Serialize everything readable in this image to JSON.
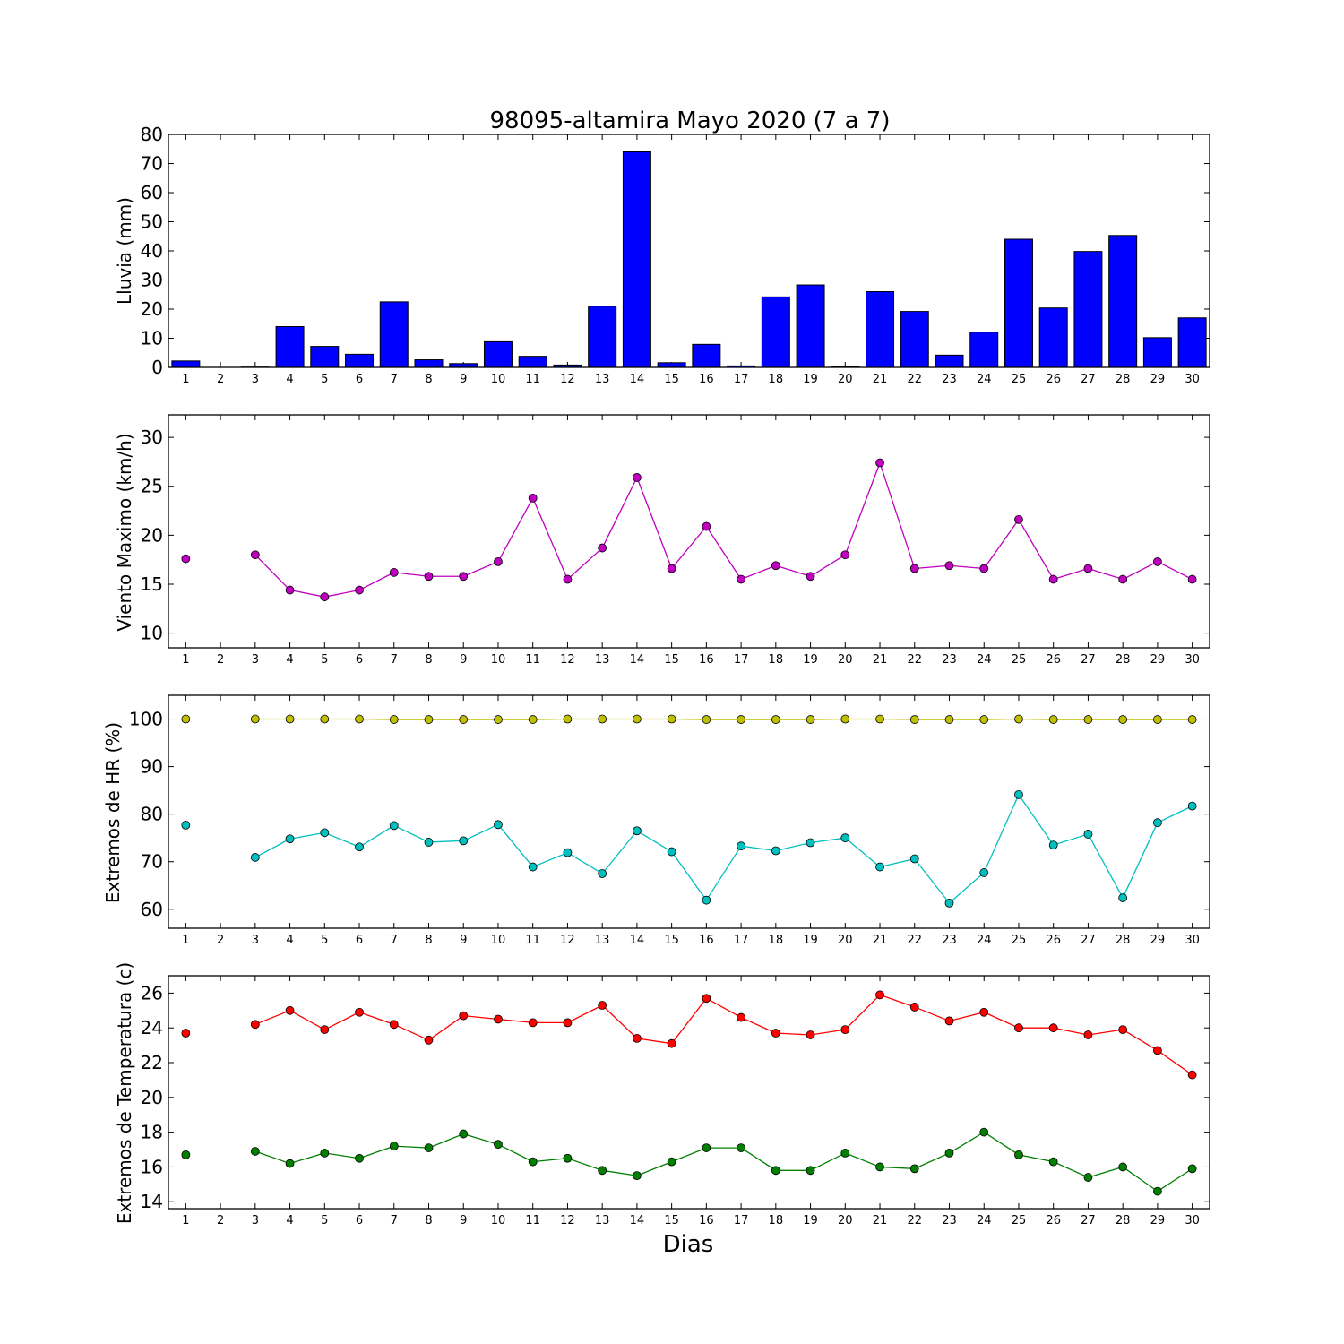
{
  "title": "98095-altamira Mayo 2020  (7 a 7)",
  "xlabel": "Dias",
  "chart_data": [
    {
      "type": "bar",
      "ylabel": "Lluvia (mm)",
      "ylim": [
        0,
        80
      ],
      "yticks": [
        0,
        10,
        20,
        30,
        40,
        50,
        60,
        70,
        80
      ],
      "categories": [
        1,
        2,
        3,
        4,
        5,
        6,
        7,
        8,
        9,
        10,
        11,
        12,
        13,
        14,
        15,
        16,
        17,
        18,
        19,
        20,
        21,
        22,
        23,
        24,
        25,
        26,
        27,
        28,
        29,
        30
      ],
      "series": [
        {
          "color": "#0000ff",
          "values": [
            2.2,
            0,
            0.1,
            14,
            7.2,
            4.5,
            22.5,
            2.6,
            1.3,
            8.8,
            3.8,
            0.8,
            21,
            74,
            1.6,
            7.9,
            0.5,
            24.2,
            28.3,
            0.2,
            26,
            19.2,
            4.2,
            12.1,
            44,
            20.4,
            39.8,
            45.3,
            10.2,
            17
          ]
        }
      ]
    },
    {
      "type": "line",
      "ylabel": "Viento Maximo (km/h)",
      "ylim": [
        8.5,
        32.3
      ],
      "yticks": [
        10,
        15,
        20,
        25,
        30
      ],
      "categories": [
        1,
        2,
        3,
        4,
        5,
        6,
        7,
        8,
        9,
        10,
        11,
        12,
        13,
        14,
        15,
        16,
        17,
        18,
        19,
        20,
        21,
        22,
        23,
        24,
        25,
        26,
        27,
        28,
        29,
        30
      ],
      "series": [
        {
          "color": "#bf00bf",
          "values": [
            17.6,
            null,
            18,
            14.4,
            13.7,
            14.4,
            16.2,
            15.8,
            15.8,
            17.3,
            23.8,
            15.5,
            18.7,
            25.9,
            16.6,
            20.9,
            15.5,
            16.9,
            15.8,
            18,
            27.4,
            16.6,
            16.9,
            16.6,
            21.6,
            15.5,
            16.6,
            15.5,
            17.3,
            15.5
          ]
        }
      ]
    },
    {
      "type": "line",
      "ylabel": "Extremos de HR (%)",
      "ylim": [
        56,
        105
      ],
      "yticks": [
        60,
        70,
        80,
        90,
        100
      ],
      "categories": [
        1,
        2,
        3,
        4,
        5,
        6,
        7,
        8,
        9,
        10,
        11,
        12,
        13,
        14,
        15,
        16,
        17,
        18,
        19,
        20,
        21,
        22,
        23,
        24,
        25,
        26,
        27,
        28,
        29,
        30
      ],
      "series": [
        {
          "color": "#bfbf00",
          "values": [
            100,
            null,
            100,
            100,
            100,
            100,
            99.9,
            99.9,
            99.9,
            99.9,
            99.9,
            100,
            100,
            100,
            100,
            99.9,
            99.9,
            99.9,
            99.9,
            100,
            100,
            99.9,
            99.9,
            99.9,
            100,
            99.9,
            99.9,
            99.9,
            99.9,
            99.9
          ]
        },
        {
          "color": "#00bfbf",
          "values": [
            77.7,
            null,
            70.9,
            74.8,
            76.1,
            73.1,
            77.6,
            74.1,
            74.4,
            77.8,
            68.9,
            71.9,
            67.5,
            76.5,
            72.1,
            61.9,
            73.3,
            72.3,
            74,
            75,
            68.9,
            70.6,
            61.3,
            67.7,
            84.1,
            73.5,
            75.8,
            62.4,
            78.2,
            81.7
          ]
        }
      ]
    },
    {
      "type": "line",
      "ylabel": "Extremos de Temperatura (c)",
      "ylim": [
        13.6,
        27
      ],
      "yticks": [
        14,
        16,
        18,
        20,
        22,
        24,
        26
      ],
      "categories": [
        1,
        2,
        3,
        4,
        5,
        6,
        7,
        8,
        9,
        10,
        11,
        12,
        13,
        14,
        15,
        16,
        17,
        18,
        19,
        20,
        21,
        22,
        23,
        24,
        25,
        26,
        27,
        28,
        29,
        30
      ],
      "series": [
        {
          "color": "#ff0000",
          "values": [
            23.7,
            null,
            24.2,
            25,
            23.9,
            24.9,
            24.2,
            23.3,
            24.7,
            24.5,
            24.3,
            24.3,
            25.3,
            23.4,
            23.1,
            25.7,
            24.6,
            23.7,
            23.6,
            23.9,
            25.9,
            25.2,
            24.4,
            24.9,
            24,
            24,
            23.6,
            23.9,
            22.7,
            21.3
          ]
        },
        {
          "color": "#007f00",
          "values": [
            16.7,
            null,
            16.9,
            16.2,
            16.8,
            16.5,
            17.2,
            17.1,
            17.9,
            17.3,
            16.3,
            16.5,
            15.8,
            15.5,
            16.3,
            17.1,
            17.1,
            15.8,
            15.8,
            16.8,
            16,
            15.9,
            16.8,
            18,
            16.7,
            16.3,
            15.4,
            16,
            14.6,
            15.9
          ]
        }
      ]
    }
  ]
}
